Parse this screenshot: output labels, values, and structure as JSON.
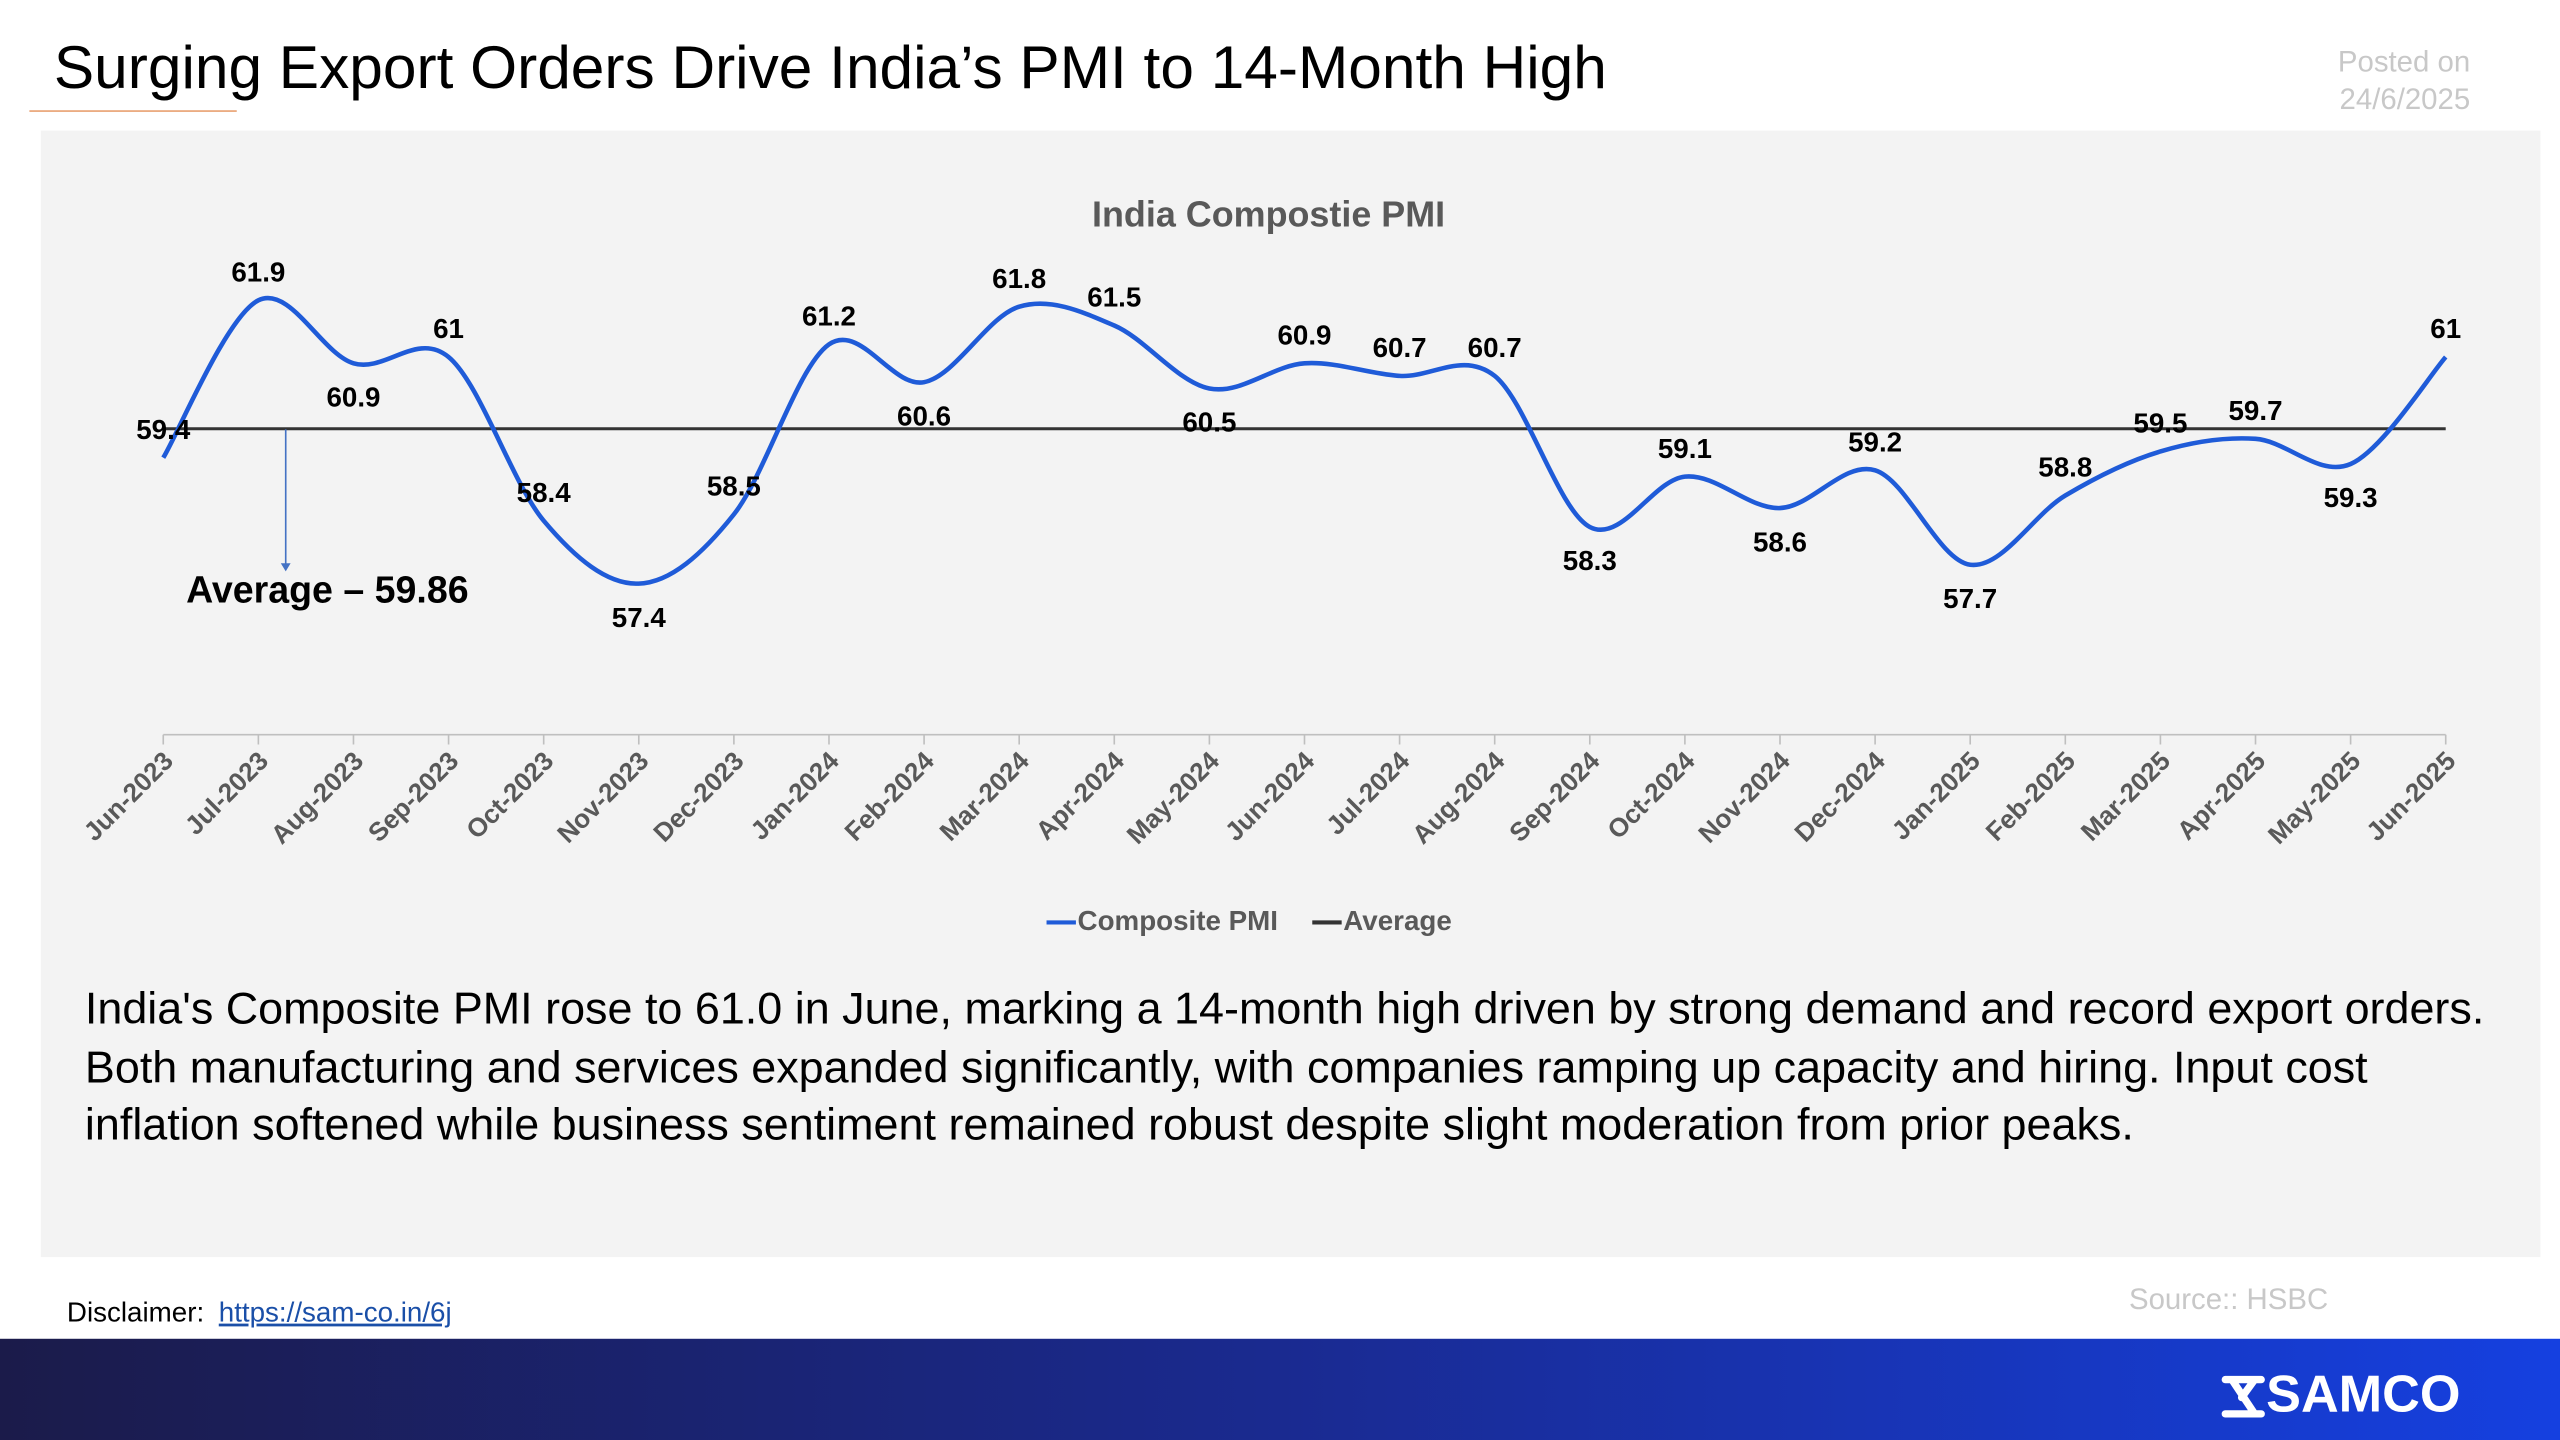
{
  "header": {
    "title": "Surging Export Orders Drive India’s PMI to 14-Month High",
    "posted_label": "Posted on",
    "posted_date": "24/6/2025"
  },
  "chart_data": {
    "type": "line",
    "title": "India Compostie PMI",
    "categories": [
      "Jun-2023",
      "Jul-2023",
      "Aug-2023",
      "Sep-2023",
      "Oct-2023",
      "Nov-2023",
      "Dec-2023",
      "Jan-2024",
      "Feb-2024",
      "Mar-2024",
      "Apr-2024",
      "May-2024",
      "Jun-2024",
      "Jul-2024",
      "Aug-2024",
      "Sep-2024",
      "Oct-2024",
      "Nov-2024",
      "Dec-2024",
      "Jan-2025",
      "Feb-2025",
      "Mar-2025",
      "Apr-2025",
      "May-2025",
      "Jun-2025"
    ],
    "series": [
      {
        "name": "Composite PMI",
        "color": "#1f5bd8",
        "values": [
          59.4,
          61.9,
          60.9,
          61,
          58.4,
          57.4,
          58.5,
          61.2,
          60.6,
          61.8,
          61.5,
          60.5,
          60.9,
          60.7,
          60.7,
          58.3,
          59.1,
          58.6,
          59.2,
          57.7,
          58.8,
          59.5,
          59.7,
          59.3,
          61
        ]
      },
      {
        "name": "Average",
        "color": "#333333",
        "values": [
          59.86,
          59.86,
          59.86,
          59.86,
          59.86,
          59.86,
          59.86,
          59.86,
          59.86,
          59.86,
          59.86,
          59.86,
          59.86,
          59.86,
          59.86,
          59.86,
          59.86,
          59.86,
          59.86,
          59.86,
          59.86,
          59.86,
          59.86,
          59.86,
          59.86
        ]
      }
    ],
    "annotation": "Average – 59.86",
    "ylim": [
      55,
      64
    ],
    "legend": "bottom"
  },
  "body": {
    "text": "India's Composite PMI rose to 61.0 in June, marking a 14-month high driven by strong demand and record export orders. Both manufacturing and services expanded significantly, with companies ramping up capacity and hiring. Input cost inflation softened while business sentiment remained robust despite slight moderation from prior peaks."
  },
  "footer": {
    "source": "Source:: HSBC",
    "disclaimer_label": "Disclaimer:",
    "disclaimer_link": "https://sam-co.in/6j",
    "brand": "SAMCO"
  }
}
